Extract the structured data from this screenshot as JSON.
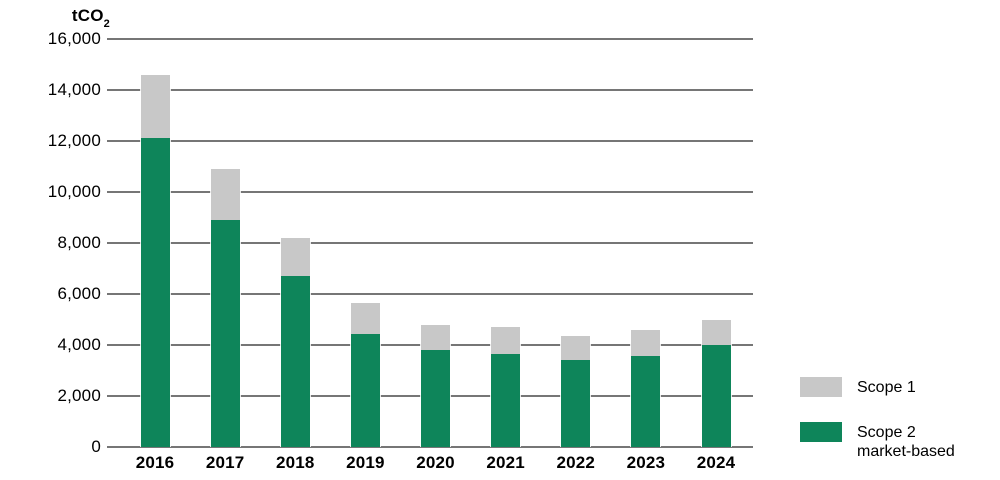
{
  "chart_data": {
    "type": "bar",
    "stacked": true,
    "title": "",
    "unit_label": {
      "text": "tCO",
      "subscript": "2"
    },
    "categories": [
      "2016",
      "2017",
      "2018",
      "2019",
      "2020",
      "2021",
      "2022",
      "2023",
      "2024"
    ],
    "series": [
      {
        "name": "Scope 1",
        "color": "#c8c8c8",
        "values": [
          2500,
          2000,
          1500,
          1200,
          1000,
          1050,
          950,
          1050,
          1000
        ]
      },
      {
        "name": "Scope 2 market-based",
        "color": "#0e855a",
        "values": [
          12100,
          8900,
          6700,
          4450,
          3800,
          3650,
          3400,
          3550,
          4000
        ]
      }
    ],
    "totals": [
      14600,
      10900,
      8200,
      5650,
      4800,
      4700,
      4350,
      4600,
      5000
    ],
    "xlabel": "",
    "ylabel": "tCO2",
    "ylim": [
      0,
      16000
    ],
    "ytick_step": 2000,
    "yticks": [
      "16,000",
      "14,000",
      "12,000",
      "10,000",
      "8,000",
      "6,000",
      "4,000",
      "2,000",
      "0"
    ],
    "grid": true,
    "grid_color": "#767676",
    "background_color": "#ffffff",
    "text_color": "#000000",
    "legend": {
      "position": "bottom-right",
      "items": [
        {
          "label_line1": "Scope 1",
          "label_line2": "",
          "color": "#c8c8c8"
        },
        {
          "label_line1": "Scope 2",
          "label_line2": "market-based",
          "color": "#0e855a"
        }
      ]
    }
  }
}
